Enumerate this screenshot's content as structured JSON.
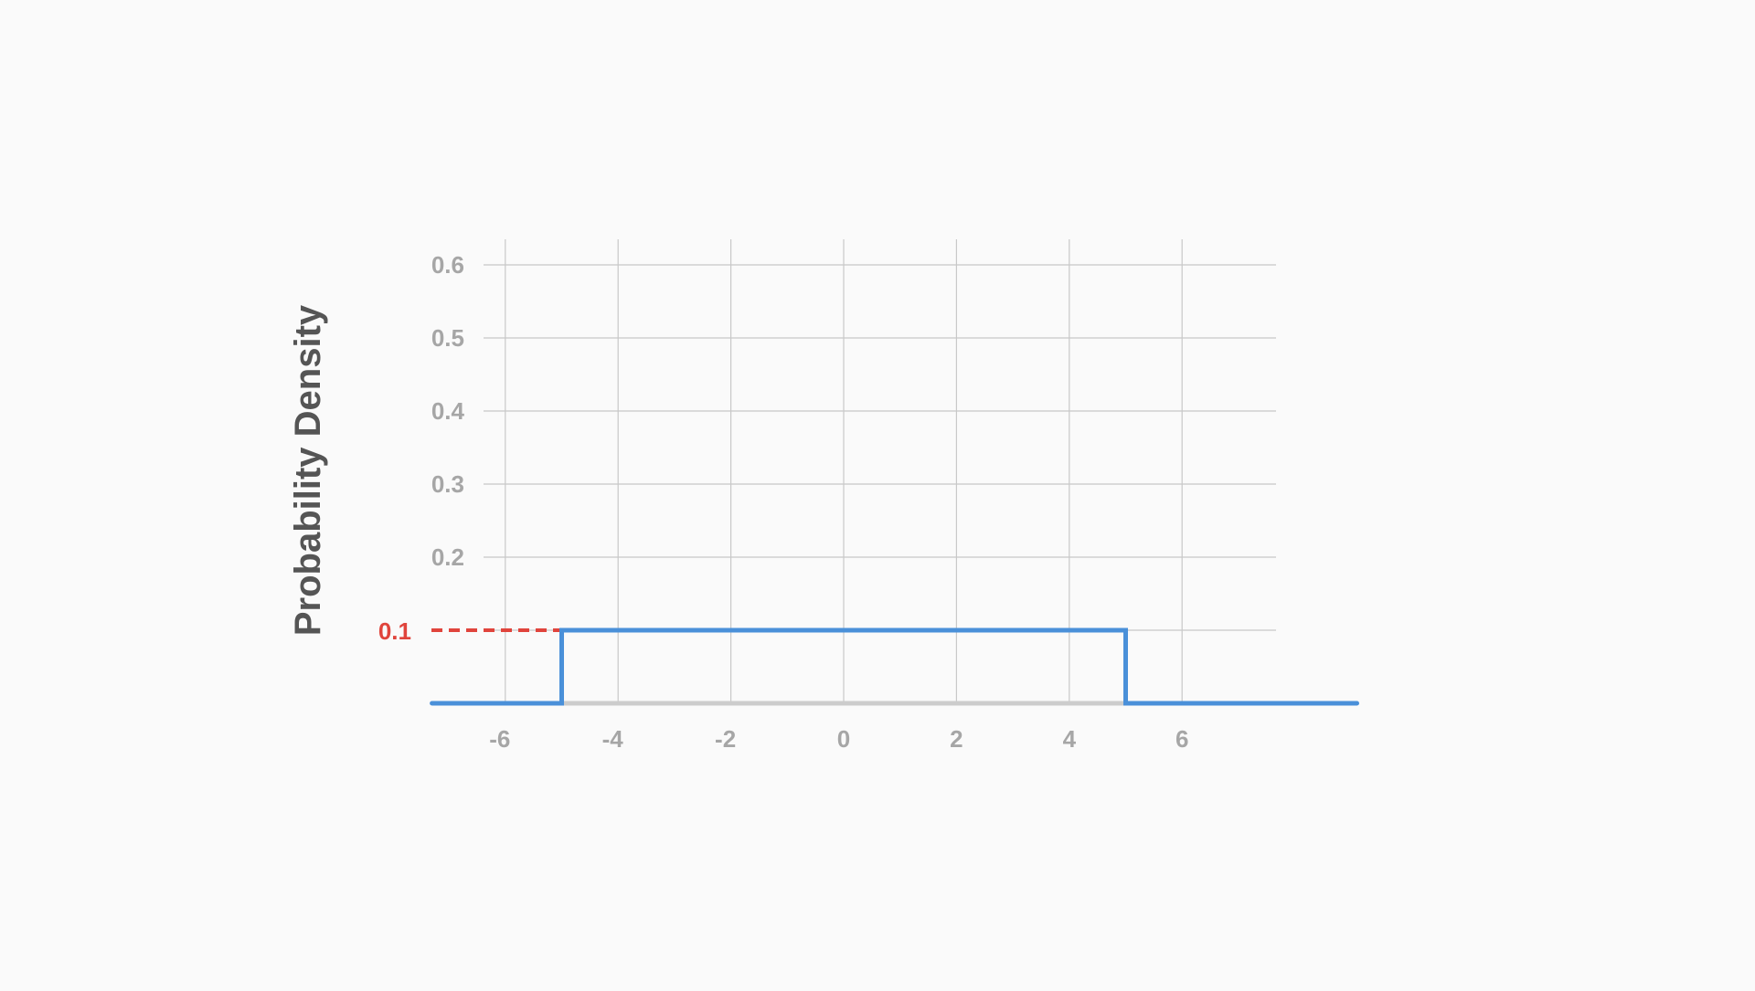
{
  "chart_data": {
    "type": "line",
    "title": "",
    "xlabel": "",
    "ylabel": "Probability Density",
    "xlim": [
      -7.5,
      7.5
    ],
    "ylim": [
      0,
      0.6
    ],
    "x_ticks": [
      -6,
      -4,
      -2,
      0,
      2,
      4,
      6
    ],
    "x_tick_labels": [
      "-6",
      "-4",
      "-2",
      "0",
      "2",
      "4",
      "6"
    ],
    "y_ticks": [
      0.2,
      0.3,
      0.4,
      0.5,
      0.6
    ],
    "y_tick_labels": [
      "0.2",
      "0.3",
      "0.4",
      "0.5",
      "0.6"
    ],
    "grid": true,
    "series": [
      {
        "x": [
          -7.3,
          -5,
          -5,
          5,
          5,
          9.1
        ],
        "y": [
          0,
          0,
          0.1,
          0.1,
          0,
          0
        ],
        "step": true
      }
    ],
    "reference_line": {
      "y": 0.1,
      "x_end": -5,
      "label": "0.1",
      "style": "dashed"
    },
    "colors": {
      "series": "#4a90d9",
      "reference": "#e0443c",
      "grid": "#c8c8c8",
      "baseline": "#cccccc",
      "tick_text": "#a6a6a6",
      "ylabel_text": "#555555",
      "background": "#fafafa"
    }
  }
}
